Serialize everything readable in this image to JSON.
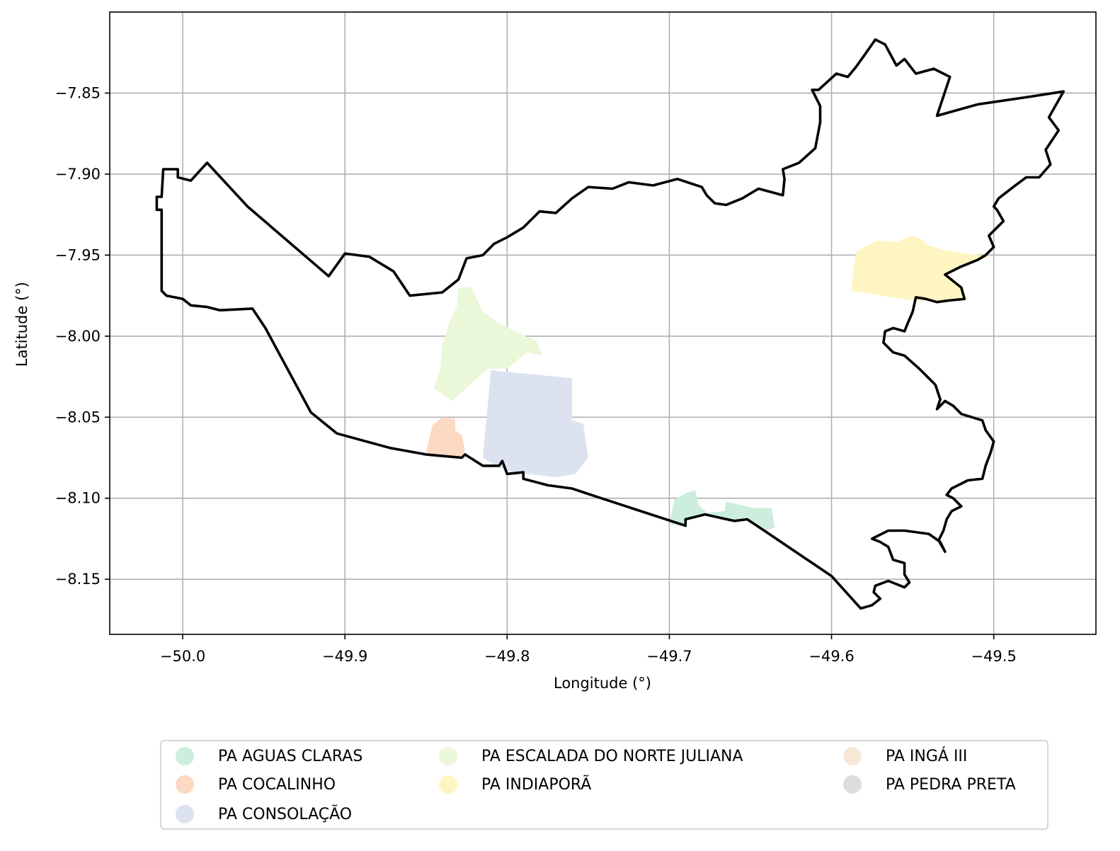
{
  "map": {
    "xlabel": "Longitude (°)",
    "ylabel": "Latitude (°)",
    "xlim": [
      -50.045,
      -49.437
    ],
    "ylim": [
      -8.184,
      -7.8
    ],
    "xticks": [
      -50.0,
      -49.9,
      -49.8,
      -49.7,
      -49.6,
      -49.5
    ],
    "xtick_labels": [
      "−50.0",
      "−49.9",
      "−49.8",
      "−49.7",
      "−49.6",
      "−49.5"
    ],
    "yticks": [
      -7.85,
      -7.9,
      -7.95,
      -8.0,
      -8.05,
      -8.1,
      -8.15
    ],
    "ytick_labels": [
      "−7.85",
      "−7.90",
      "−7.95",
      "−8.00",
      "−8.05",
      "−8.10",
      "−8.15"
    ],
    "grid": true,
    "boundary_color": "#000000"
  },
  "legend": {
    "placement": "below",
    "items": [
      {
        "label": "PA AGUAS CLARAS",
        "color": "#cdeedd"
      },
      {
        "label": "PA COCALINHO",
        "color": "#fcd9c2"
      },
      {
        "label": "PA CONSOLAÇÃO",
        "color": "#dde2f0"
      },
      {
        "label": "PA ESCALADA DO NORTE JULIANA",
        "color": "#eaf7d8"
      },
      {
        "label": "PA INDIAPORÃ",
        "color": "#fff5c2"
      },
      {
        "label": "PA INGÁ III",
        "color": "#f7e8d5"
      },
      {
        "label": "PA PEDRA PRETA",
        "color": "#dddddd"
      }
    ]
  },
  "chart_data": {
    "type": "map",
    "xlabel": "Longitude (°)",
    "ylabel": "Latitude (°)",
    "xlim": [
      -50.045,
      -49.437
    ],
    "ylim": [
      -8.184,
      -7.8
    ],
    "grid": true,
    "municipality_boundary": [
      [
        -50.013,
        -7.972
      ],
      [
        -50.01,
        -7.975
      ],
      [
        -50.0,
        -7.977
      ],
      [
        -49.995,
        -7.981
      ],
      [
        -49.985,
        -7.982
      ],
      [
        -49.977,
        -7.984
      ],
      [
        -49.957,
        -7.983
      ],
      [
        -49.949,
        -7.995
      ],
      [
        -49.921,
        -8.047
      ],
      [
        -49.905,
        -8.06
      ],
      [
        -49.872,
        -8.069
      ],
      [
        -49.85,
        -8.073
      ],
      [
        -49.828,
        -8.075
      ],
      [
        -49.826,
        -8.073
      ],
      [
        -49.815,
        -8.08
      ],
      [
        -49.805,
        -8.08
      ],
      [
        -49.803,
        -8.077
      ],
      [
        -49.8,
        -8.085
      ],
      [
        -49.79,
        -8.084
      ],
      [
        -49.79,
        -8.088
      ],
      [
        -49.775,
        -8.092
      ],
      [
        -49.76,
        -8.094
      ],
      [
        -49.745,
        -8.099
      ],
      [
        -49.69,
        -8.117
      ],
      [
        -49.69,
        -8.113
      ],
      [
        -49.678,
        -8.11
      ],
      [
        -49.66,
        -8.114
      ],
      [
        -49.652,
        -8.113
      ],
      [
        -49.64,
        -8.121
      ],
      [
        -49.6,
        -8.148
      ],
      [
        -49.582,
        -8.168
      ],
      [
        -49.575,
        -8.166
      ],
      [
        -49.57,
        -8.162
      ],
      [
        -49.574,
        -8.158
      ],
      [
        -49.573,
        -8.154
      ],
      [
        -49.565,
        -8.151
      ],
      [
        -49.56,
        -8.153
      ],
      [
        -49.555,
        -8.155
      ],
      [
        -49.552,
        -8.152
      ],
      [
        -49.555,
        -8.147
      ],
      [
        -49.555,
        -8.14
      ],
      [
        -49.562,
        -8.138
      ],
      [
        -49.565,
        -8.13
      ],
      [
        -49.57,
        -8.127
      ],
      [
        -49.575,
        -8.125
      ],
      [
        -49.565,
        -8.12
      ],
      [
        -49.555,
        -8.12
      ],
      [
        -49.54,
        -8.122
      ],
      [
        -49.533,
        -8.127
      ],
      [
        -49.53,
        -8.133
      ],
      [
        -49.534,
        -8.126
      ],
      [
        -49.531,
        -8.12
      ],
      [
        -49.529,
        -8.113
      ],
      [
        -49.526,
        -8.108
      ],
      [
        -49.52,
        -8.105
      ],
      [
        -49.525,
        -8.1
      ],
      [
        -49.529,
        -8.098
      ],
      [
        -49.526,
        -8.094
      ],
      [
        -49.516,
        -8.089
      ],
      [
        -49.507,
        -8.088
      ],
      [
        -49.505,
        -8.08
      ],
      [
        -49.502,
        -8.072
      ],
      [
        -49.5,
        -8.065
      ],
      [
        -49.505,
        -8.058
      ],
      [
        -49.507,
        -8.052
      ],
      [
        -49.52,
        -8.048
      ],
      [
        -49.525,
        -8.043
      ],
      [
        -49.53,
        -8.04
      ],
      [
        -49.535,
        -8.045
      ],
      [
        -49.533,
        -8.039
      ],
      [
        -49.536,
        -8.03
      ],
      [
        -49.54,
        -8.026
      ],
      [
        -49.546,
        -8.02
      ],
      [
        -49.555,
        -8.012
      ],
      [
        -49.562,
        -8.01
      ],
      [
        -49.568,
        -8.004
      ],
      [
        -49.567,
        -7.997
      ],
      [
        -49.562,
        -7.995
      ],
      [
        -49.555,
        -7.997
      ],
      [
        -49.553,
        -7.992
      ],
      [
        -49.55,
        -7.985
      ],
      [
        -49.548,
        -7.976
      ],
      [
        -49.542,
        -7.977
      ],
      [
        -49.535,
        -7.979
      ],
      [
        -49.528,
        -7.978
      ],
      [
        -49.518,
        -7.977
      ],
      [
        -49.52,
        -7.97
      ],
      [
        -49.53,
        -7.962
      ],
      [
        -49.52,
        -7.957
      ],
      [
        -49.51,
        -7.953
      ],
      [
        -49.505,
        -7.95
      ],
      [
        -49.5,
        -7.945
      ],
      [
        -49.503,
        -7.938
      ],
      [
        -49.497,
        -7.932
      ],
      [
        -49.494,
        -7.929
      ],
      [
        -49.498,
        -7.922
      ],
      [
        -49.5,
        -7.92
      ],
      [
        -49.497,
        -7.915
      ],
      [
        -49.488,
        -7.908
      ],
      [
        -49.48,
        -7.902
      ],
      [
        -49.472,
        -7.902
      ],
      [
        -49.465,
        -7.894
      ],
      [
        -49.468,
        -7.885
      ],
      [
        -49.46,
        -7.873
      ],
      [
        -49.466,
        -7.865
      ],
      [
        -49.457,
        -7.849
      ],
      [
        -49.476,
        -7.852
      ],
      [
        -49.51,
        -7.857
      ],
      [
        -49.535,
        -7.864
      ],
      [
        -49.527,
        -7.84
      ],
      [
        -49.537,
        -7.835
      ],
      [
        -49.548,
        -7.838
      ],
      [
        -49.555,
        -7.829
      ],
      [
        -49.56,
        -7.833
      ],
      [
        -49.567,
        -7.82
      ],
      [
        -49.573,
        -7.817
      ],
      [
        -49.58,
        -7.827
      ],
      [
        -49.585,
        -7.834
      ],
      [
        -49.59,
        -7.84
      ],
      [
        -49.597,
        -7.838
      ],
      [
        -49.608,
        -7.848
      ],
      [
        -49.612,
        -7.848
      ],
      [
        -49.607,
        -7.858
      ],
      [
        -49.607,
        -7.868
      ],
      [
        -49.61,
        -7.884
      ],
      [
        -49.62,
        -7.893
      ],
      [
        -49.63,
        -7.897
      ],
      [
        -49.629,
        -7.903
      ],
      [
        -49.63,
        -7.913
      ],
      [
        -49.645,
        -7.909
      ],
      [
        -49.655,
        -7.915
      ],
      [
        -49.665,
        -7.919
      ],
      [
        -49.672,
        -7.918
      ],
      [
        -49.677,
        -7.913
      ],
      [
        -49.68,
        -7.908
      ],
      [
        -49.695,
        -7.903
      ],
      [
        -49.71,
        -7.907
      ],
      [
        -49.725,
        -7.905
      ],
      [
        -49.735,
        -7.909
      ],
      [
        -49.75,
        -7.908
      ],
      [
        -49.76,
        -7.915
      ],
      [
        -49.77,
        -7.924
      ],
      [
        -49.78,
        -7.923
      ],
      [
        -49.79,
        -7.933
      ],
      [
        -49.8,
        -7.939
      ],
      [
        -49.808,
        -7.943
      ],
      [
        -49.815,
        -7.95
      ],
      [
        -49.825,
        -7.952
      ],
      [
        -49.83,
        -7.965
      ],
      [
        -49.84,
        -7.973
      ],
      [
        -49.86,
        -7.975
      ],
      [
        -49.87,
        -7.96
      ],
      [
        -49.885,
        -7.951
      ],
      [
        -49.9,
        -7.949
      ],
      [
        -49.91,
        -7.963
      ],
      [
        -49.96,
        -7.92
      ],
      [
        -49.985,
        -7.893
      ],
      [
        -49.995,
        -7.904
      ],
      [
        -50.003,
        -7.902
      ],
      [
        -50.003,
        -7.897
      ],
      [
        -50.012,
        -7.897
      ],
      [
        -50.013,
        -7.914
      ],
      [
        -50.016,
        -7.914
      ],
      [
        -50.016,
        -7.922
      ],
      [
        -50.013,
        -7.922
      ]
    ],
    "areas": [
      {
        "name": "PA ESCALADA DO NORTE JULIANA",
        "color": "#eaf7d8",
        "polygon": [
          [
            -49.834,
            -8.04
          ],
          [
            -49.823,
            -8.03
          ],
          [
            -49.812,
            -8.02
          ],
          [
            -49.8,
            -8.02
          ],
          [
            -49.788,
            -8.01
          ],
          [
            -49.778,
            -8.012
          ],
          [
            -49.782,
            -8.003
          ],
          [
            -49.793,
            -7.998
          ],
          [
            -49.805,
            -7.992
          ],
          [
            -49.815,
            -7.985
          ],
          [
            -49.822,
            -7.97
          ],
          [
            -49.825,
            -7.97
          ],
          [
            -49.83,
            -7.97
          ],
          [
            -49.831,
            -7.982
          ],
          [
            -49.835,
            -7.99
          ],
          [
            -49.84,
            -8.005
          ],
          [
            -49.841,
            -8.02
          ],
          [
            -49.845,
            -8.032
          ]
        ]
      },
      {
        "name": "PA CONSOLAÇÃO",
        "color": "#dde2f0",
        "polygon": [
          [
            -49.81,
            -8.021
          ],
          [
            -49.76,
            -8.026
          ],
          [
            -49.76,
            -8.052
          ],
          [
            -49.753,
            -8.054
          ],
          [
            -49.75,
            -8.075
          ],
          [
            -49.758,
            -8.085
          ],
          [
            -49.77,
            -8.087
          ],
          [
            -49.787,
            -8.085
          ],
          [
            -49.797,
            -8.084
          ],
          [
            -49.807,
            -8.08
          ],
          [
            -49.815,
            -8.075
          ]
        ]
      },
      {
        "name": "PA COCALINHO",
        "color": "#fcd9c2",
        "polygon": [
          [
            -49.85,
            -8.072
          ],
          [
            -49.836,
            -8.075
          ],
          [
            -49.828,
            -8.075
          ],
          [
            -49.826,
            -8.07
          ],
          [
            -49.828,
            -8.061
          ],
          [
            -49.832,
            -8.058
          ],
          [
            -49.832,
            -8.051
          ],
          [
            -49.84,
            -8.05
          ],
          [
            -49.846,
            -8.055
          ]
        ]
      },
      {
        "name": "PA AGUAS CLARAS",
        "color": "#cdeedd",
        "polygon": [
          [
            -49.7,
            -8.116
          ],
          [
            -49.69,
            -8.117
          ],
          [
            -49.69,
            -8.113
          ],
          [
            -49.678,
            -8.11
          ],
          [
            -49.668,
            -8.113
          ],
          [
            -49.66,
            -8.114
          ],
          [
            -49.652,
            -8.113
          ],
          [
            -49.64,
            -8.12
          ],
          [
            -49.635,
            -8.118
          ],
          [
            -49.637,
            -8.106
          ],
          [
            -49.648,
            -8.106
          ],
          [
            -49.665,
            -8.102
          ],
          [
            -49.666,
            -8.108
          ],
          [
            -49.677,
            -8.109
          ],
          [
            -49.682,
            -8.104
          ],
          [
            -49.684,
            -8.095
          ],
          [
            -49.69,
            -8.097
          ],
          [
            -49.697,
            -8.101
          ]
        ]
      },
      {
        "name": "PA INDIAPORÃ",
        "color": "#fff5c2",
        "polygon": [
          [
            -49.588,
            -7.972
          ],
          [
            -49.55,
            -7.978
          ],
          [
            -49.528,
            -7.978
          ],
          [
            -49.518,
            -7.977
          ],
          [
            -49.52,
            -7.97
          ],
          [
            -49.53,
            -7.962
          ],
          [
            -49.52,
            -7.957
          ],
          [
            -49.51,
            -7.953
          ],
          [
            -49.502,
            -7.951
          ],
          [
            -49.53,
            -7.947
          ],
          [
            -49.54,
            -7.944
          ],
          [
            -49.545,
            -7.94
          ],
          [
            -49.55,
            -7.938
          ],
          [
            -49.56,
            -7.942
          ],
          [
            -49.572,
            -7.941
          ],
          [
            -49.576,
            -7.943
          ],
          [
            -49.585,
            -7.948
          ]
        ]
      }
    ]
  }
}
